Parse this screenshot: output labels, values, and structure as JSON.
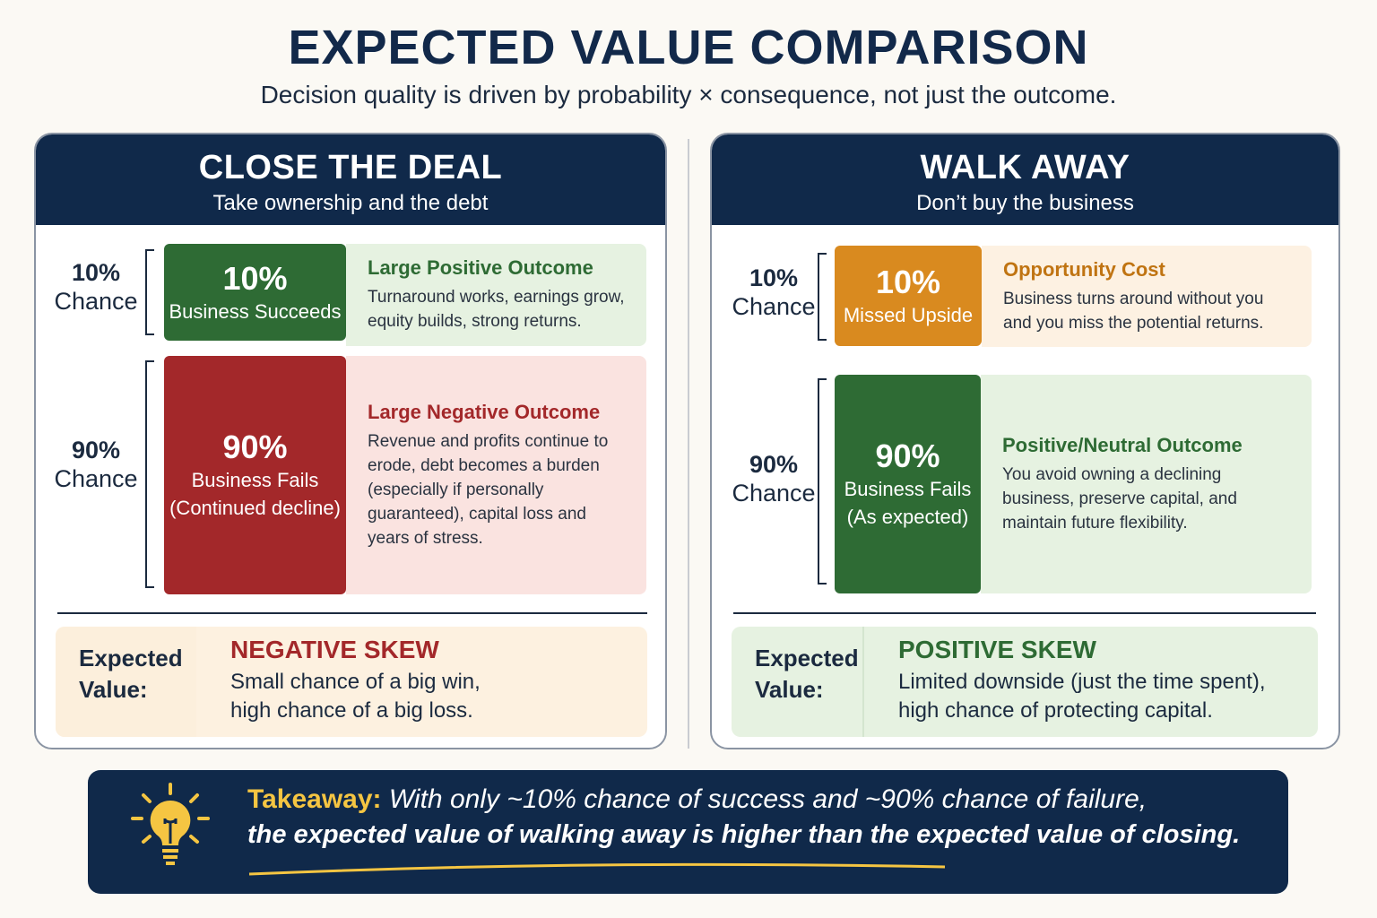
{
  "title": "EXPECTED VALUE COMPARISON",
  "subtitle": "Decision quality is driven by probability × consequence, not just the outcome.",
  "left": {
    "title": "CLOSE THE DEAL",
    "subtitle": "Take ownership and the debt",
    "rows": [
      {
        "chance_pct": "10%",
        "chance_word": "Chance",
        "box_pct": "10%",
        "box_label": "Business Succeeds",
        "box_label2": "",
        "desc_title": "Large Positive Outcome",
        "desc": "Turnaround works, earnings grow, equity builds, strong returns.",
        "color": "#2e6b34"
      },
      {
        "chance_pct": "90%",
        "chance_word": "Chance",
        "box_pct": "90%",
        "box_label": "Business Fails",
        "box_label2": "(Continued decline)",
        "desc_title": "Large Negative Outcome",
        "desc": "Revenue and profits continue to erode, debt becomes a burden (especially if personally guaranteed), capital loss and years of stress.",
        "color": "#a3282a"
      }
    ],
    "ev_label": "Expected Value:",
    "ev_title": "NEGATIVE SKEW",
    "ev_desc": "Small chance of a big win, high chance of a big loss."
  },
  "right": {
    "title": "WALK AWAY",
    "subtitle": "Don’t buy the business",
    "rows": [
      {
        "chance_pct": "10%",
        "chance_word": "Chance",
        "box_pct": "10%",
        "box_label": "Missed Upside",
        "box_label2": "",
        "desc_title": "Opportunity Cost",
        "desc": "Business turns around without you and you miss the potential returns.",
        "color": "#d98a1f"
      },
      {
        "chance_pct": "90%",
        "chance_word": "Chance",
        "box_pct": "90%",
        "box_label": "Business Fails",
        "box_label2": "(As expected)",
        "desc_title": "Positive/Neutral Outcome",
        "desc": "You avoid owning a declining business, preserve capital, and maintain future flexibility.",
        "color": "#2e6b34"
      }
    ],
    "ev_label": "Expected Value:",
    "ev_title": "POSITIVE SKEW",
    "ev_desc": "Limited downside (just the time spent), high chance of protecting capital."
  },
  "takeaway": {
    "label": "Takeaway:",
    "line1": "With only ~10% chance of success and ~90% chance of failure,",
    "line2": "the expected value of walking away is higher than the expected value of closing."
  },
  "colors": {
    "navy": "#10294a",
    "green": "#2e6b34",
    "red": "#a3282a",
    "orange": "#d98a1f",
    "yellow": "#f5c542"
  }
}
